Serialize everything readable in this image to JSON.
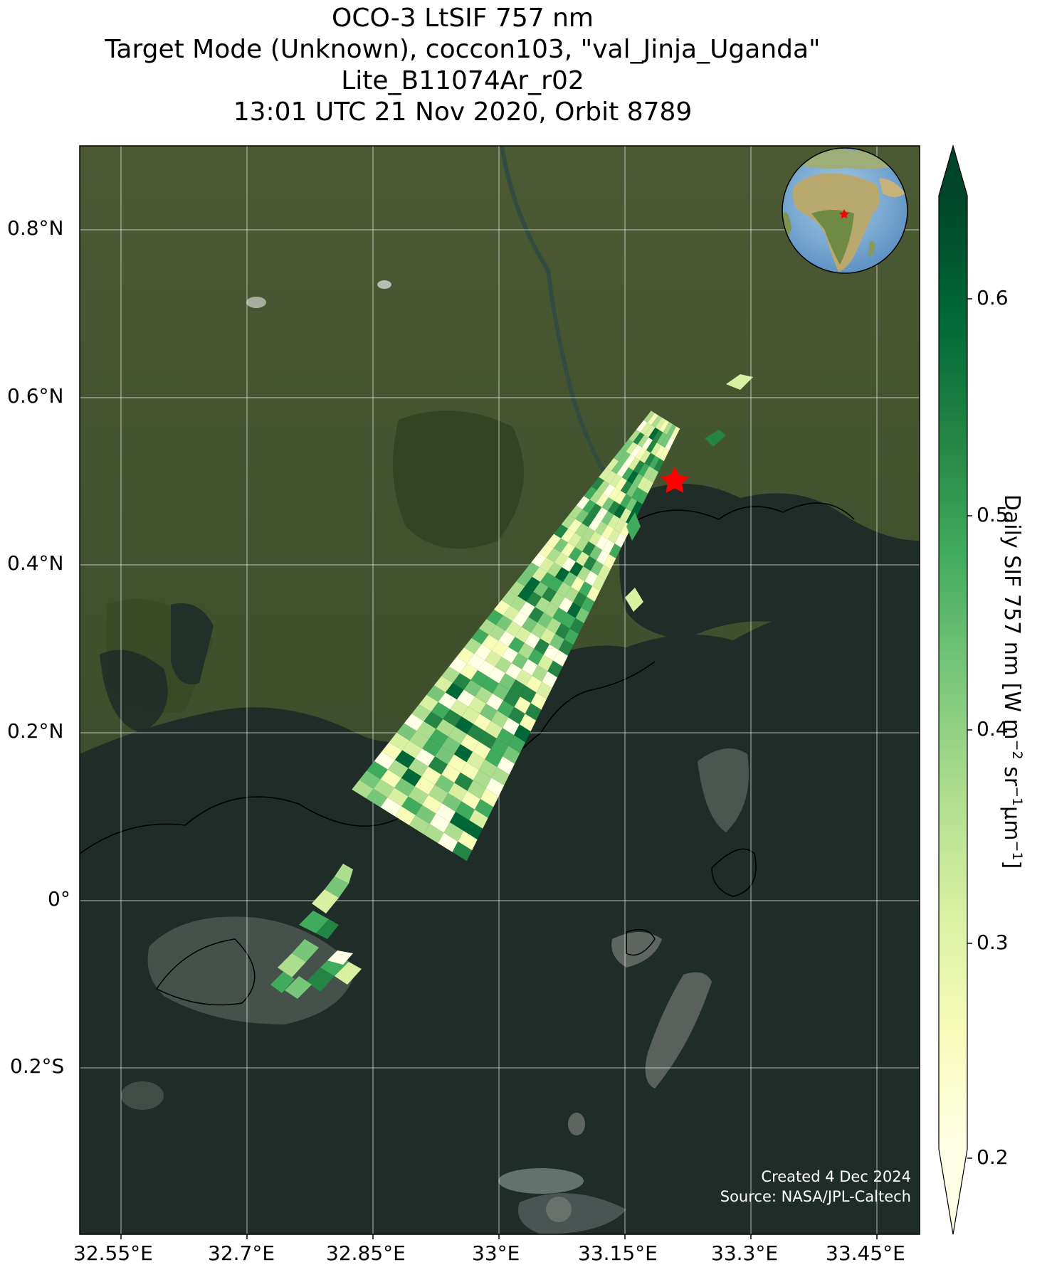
{
  "title": {
    "line1": "OCO-3 LtSIF 757 nm",
    "line2": "Target Mode (Unknown), coccon103, \"val_Jinja_Uganda\"",
    "line3": "Lite_B11074Ar_r02",
    "line4": "13:01 UTC 21 Nov 2020, Orbit 8789"
  },
  "axes": {
    "lon_ticks": [
      "32.55°E",
      "32.7°E",
      "32.85°E",
      "33°E",
      "33.15°E",
      "33.3°E",
      "33.45°E"
    ],
    "lat_ticks": [
      "0.8°N",
      "0.6°N",
      "0.4°N",
      "0.2°N",
      "0°",
      "0.2°S"
    ]
  },
  "colorbar": {
    "label_main": "Daily SIF 757 nm [W m",
    "label_sup1": "−2",
    "label_mid1": " sr",
    "label_sup2": "−1",
    "label_mid2": "μm",
    "label_sup3": "−1",
    "label_end": "]",
    "ticks": [
      "0.6",
      "0.5",
      "0.4",
      "0.3",
      "0.2"
    ],
    "range": [
      0.18,
      0.64
    ],
    "colors": [
      "#ffffe5",
      "#f7fcb9",
      "#d9f0a3",
      "#addd8e",
      "#78c679",
      "#41ab5d",
      "#238443",
      "#006837",
      "#004529"
    ]
  },
  "credit": {
    "line1": "Created 4 Dec 2024",
    "line2": "Source: NASA/JPL-Caltech"
  },
  "site_marker": {
    "label": "star",
    "color": "#ff0000"
  }
}
